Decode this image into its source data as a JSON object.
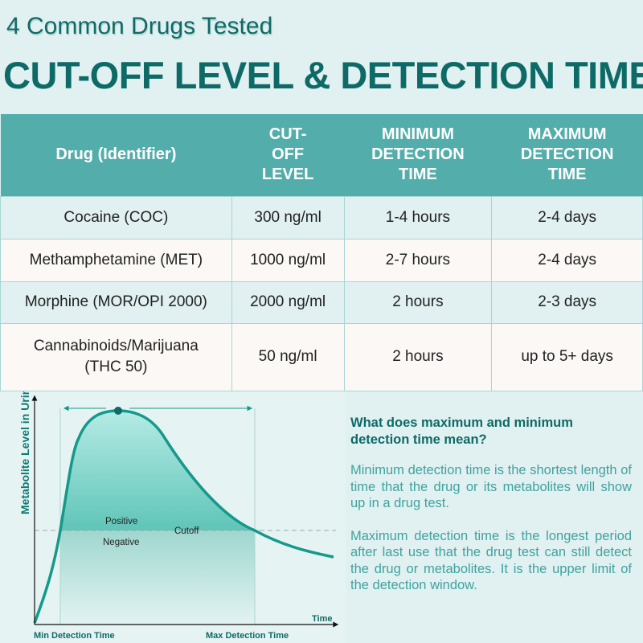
{
  "header": {
    "subtitle": "4 Common Drugs Tested",
    "title": "CUT-OFF LEVEL & DETECTION TIME"
  },
  "table": {
    "columns": [
      "Drug (Identifier)",
      "CUT-OFF LEVEL",
      "MINIMUM DETECTION TIME",
      "MAXIMUM DETECTION TIME"
    ],
    "rows": [
      [
        "Cocaine (COC)",
        "300 ng/ml",
        "1-4 hours",
        "2-4 days"
      ],
      [
        "Methamphetamine (MET)",
        "1000 ng/ml",
        "2-7 hours",
        "2-4 days"
      ],
      [
        "Morphine (MOR/OPI 2000)",
        "2000 ng/ml",
        "2 hours",
        "2-3 days"
      ],
      [
        "Cannabinoids/Marijuana (THC 50)",
        "50 ng/ml",
        "2 hours",
        "up to 5+ days"
      ]
    ]
  },
  "diagram": {
    "ylabel": "Metabolite Level in Urine",
    "xlabel": "Time",
    "positive": "Positive",
    "negative": "Negative",
    "cutoff": "Cutoff",
    "min_label": "Min Detection Time",
    "max_label": "Max Detection Time"
  },
  "info": {
    "heading": "What does maximum and minimum detection time mean?",
    "p1": "Minimum detection time is the shortest length of time that the drug or its metabolites will show up in a drug test.",
    "p2": "Maximum detection time is the longest period after last use that the drug test can still detect the drug or metabolites. It is the upper limit of the detection window."
  },
  "colors": {
    "brand": "#0e6a66",
    "header": "#53aeab",
    "curve": "#14998a"
  }
}
